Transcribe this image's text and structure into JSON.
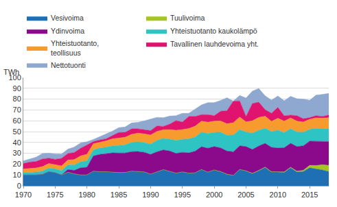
{
  "chart_data": {
    "type": "area",
    "stacked": true,
    "y_label": "TWh",
    "x": [
      1970,
      1971,
      1972,
      1973,
      1974,
      1975,
      1976,
      1977,
      1978,
      1979,
      1980,
      1981,
      1982,
      1983,
      1984,
      1985,
      1986,
      1987,
      1988,
      1989,
      1990,
      1991,
      1992,
      1993,
      1994,
      1995,
      1996,
      1997,
      1998,
      1999,
      2000,
      2001,
      2002,
      2003,
      2004,
      2005,
      2006,
      2007,
      2008,
      2009,
      2010,
      2011,
      2012,
      2013,
      2014,
      2015,
      2016,
      2017,
      2018
    ],
    "xlim": [
      1970,
      2018
    ],
    "xticks": [
      1970,
      1975,
      1980,
      1985,
      1990,
      1995,
      2000,
      2005,
      2010,
      2015
    ],
    "ylim": [
      0,
      100
    ],
    "yticks": [
      0,
      10,
      20,
      30,
      40,
      50,
      60,
      70,
      80,
      90,
      100
    ],
    "grid": true,
    "legend": "top",
    "series": [
      {
        "name": "Vesivoima",
        "color": "#1f6fb5",
        "values": [
          10,
          10,
          10,
          10.5,
          13,
          12,
          10,
          12.5,
          11,
          10,
          10.1,
          13.5,
          13,
          13,
          12.5,
          12.2,
          12.3,
          13.5,
          13.2,
          12.8,
          10.8,
          13,
          14.9,
          13.3,
          11.7,
          12.8,
          11.7,
          12,
          15,
          12.6,
          14.5,
          13,
          10.6,
          9.5,
          15,
          13.6,
          11.3,
          14,
          16.9,
          12.6,
          12.7,
          12.3,
          16.6,
          12.7,
          13.2,
          16.6,
          15.6,
          14.6,
          13.1
        ]
      },
      {
        "name": "Tuulivoima",
        "color": "#a6c523",
        "values": [
          0,
          0,
          0,
          0,
          0,
          0,
          0,
          0,
          0,
          0,
          0,
          0,
          0,
          0,
          0,
          0,
          0,
          0,
          0,
          0,
          0,
          0,
          0,
          0,
          0,
          0,
          0,
          0,
          0,
          0,
          0.1,
          0.1,
          0.1,
          0.1,
          0.1,
          0.2,
          0.2,
          0.2,
          0.3,
          0.3,
          0.3,
          0.5,
          0.5,
          0.8,
          1.1,
          2.3,
          3.1,
          4.8,
          5.8
        ]
      },
      {
        "name": "Ydinvoima",
        "color": "#8b0a8b",
        "values": [
          0,
          0,
          0,
          0,
          0,
          0,
          0,
          2.5,
          3.2,
          6.6,
          7,
          14,
          16,
          16.6,
          17.9,
          18,
          18,
          18,
          18.4,
          18.1,
          18.1,
          18.4,
          18.2,
          18.8,
          18.2,
          18.1,
          18.7,
          20,
          21,
          22.1,
          21.6,
          21.9,
          21.4,
          21.8,
          21.8,
          22.4,
          22,
          22.5,
          22,
          22.6,
          21.9,
          22.3,
          22.1,
          22.7,
          22.6,
          22.3,
          22.3,
          21.6,
          21.9
        ]
      },
      {
        "name": "Yhteistuotanto kaukolämpö",
        "color": "#2ec4c4",
        "values": [
          2,
          2.3,
          2.6,
          3,
          3.3,
          3.6,
          4,
          4.3,
          5,
          5.5,
          6,
          5.5,
          5.8,
          6,
          6.5,
          7,
          7.5,
          8.5,
          9,
          9,
          9.5,
          10.5,
          10.5,
          11,
          12,
          12,
          13,
          13,
          13.5,
          13.5,
          13,
          14.5,
          14.5,
          15.5,
          15,
          13.5,
          15,
          14.5,
          14,
          14.5,
          16.5,
          14,
          13.5,
          13.5,
          12.5,
          11,
          12,
          11.5,
          12
        ]
      },
      {
        "name": "Yhteistuotanto, teollisuus",
        "color": "#f79b2e",
        "values": [
          3.5,
          3.6,
          3.8,
          4.2,
          4.2,
          3.8,
          4.3,
          4.5,
          5,
          5.5,
          6,
          5.8,
          5.5,
          5.8,
          6.5,
          7,
          7,
          7.5,
          8,
          8,
          8.5,
          8.3,
          8.2,
          8.8,
          9.3,
          9,
          9.5,
          10,
          10.2,
          10.5,
          10.5,
          10.3,
          10.7,
          11.3,
          11.5,
          9.3,
          11.5,
          12,
          11,
          9.5,
          11,
          10.5,
          10,
          10,
          9.5,
          9.2,
          9.7,
          10,
          10
        ]
      },
      {
        "name": "Tavallinen lauhdevoima yht.",
        "color": "#e0136e",
        "values": [
          5,
          6,
          6,
          7,
          5,
          5,
          7,
          6,
          6.5,
          7,
          8.5,
          2,
          2,
          2,
          3,
          5,
          4.5,
          5,
          4,
          4,
          4,
          5,
          3,
          5,
          9,
          7,
          11,
          9,
          6,
          7,
          5,
          9,
          12,
          20,
          15,
          5,
          16,
          14,
          6,
          7.5,
          10,
          5,
          2.5,
          5,
          3,
          1.5,
          2,
          1.5,
          2.5
        ]
      },
      {
        "name": "Nettotuonti",
        "color": "#8fa8d0",
        "values": [
          2.5,
          3,
          4,
          5,
          4.5,
          5,
          4,
          4,
          5,
          5,
          3,
          2,
          3,
          4,
          4,
          4.5,
          5,
          5.5,
          6,
          8,
          10.7,
          8,
          8,
          7.5,
          4.5,
          8,
          3,
          7,
          9,
          11,
          12,
          10,
          12,
          0,
          5,
          17,
          11.4,
          12.6,
          12.8,
          12.1,
          10.5,
          13.9,
          17.4,
          15.7,
          18.1,
          16,
          19,
          20.4,
          20
        ]
      }
    ]
  }
}
